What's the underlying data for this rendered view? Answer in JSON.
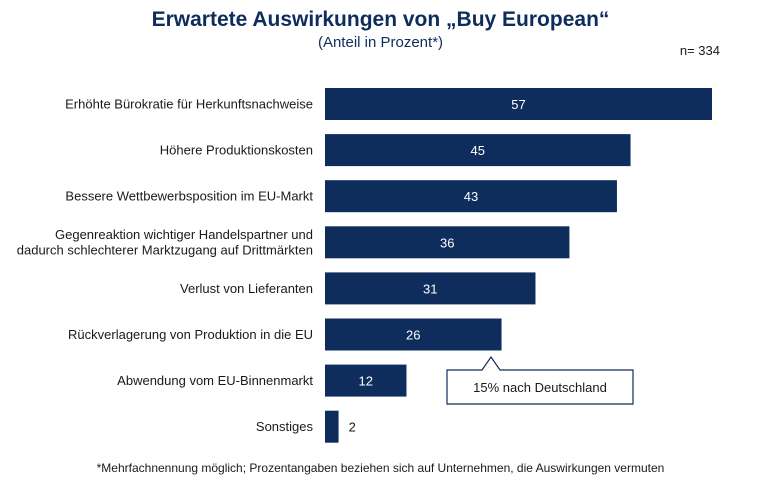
{
  "header": {
    "title": "Erwartete Auswirkungen von „Buy European“",
    "subtitle": "(Anteil in Prozent*)",
    "sample_size": "n= 334"
  },
  "footnote": "*Mehrfachnennung möglich; Prozentangaben beziehen sich auf Unternehmen, die Auswirkungen vermuten",
  "callout": {
    "text": "15% nach Deutschland",
    "refers_to_category_index": 5
  },
  "colors": {
    "bar": "#0f2d5c",
    "bar_label_inside": "#ffffff",
    "bar_label_outside": "#1a1a1a",
    "title": "#0f2d5c"
  },
  "chart_data": {
    "type": "bar",
    "orientation": "horizontal",
    "categories": [
      [
        "Erhöhte Bürokratie für Herkunftsnachweise"
      ],
      [
        "Höhere Produktionskosten"
      ],
      [
        "Bessere Wettbewerbsposition im EU-Markt"
      ],
      [
        "Gegenreaktion wichtiger Handelspartner und",
        "dadurch schlechterer Marktzugang auf Drittmärkten"
      ],
      [
        "Verlust von Lieferanten"
      ],
      [
        "Rückverlagerung von Produktion in die EU"
      ],
      [
        "Abwendung vom EU-Binnenmarkt"
      ],
      [
        "Sonstiges"
      ]
    ],
    "values": [
      57,
      45,
      43,
      36,
      31,
      26,
      12,
      2
    ],
    "xlim": [
      0,
      57
    ],
    "grid": false,
    "legend": false,
    "data_labels": true
  }
}
